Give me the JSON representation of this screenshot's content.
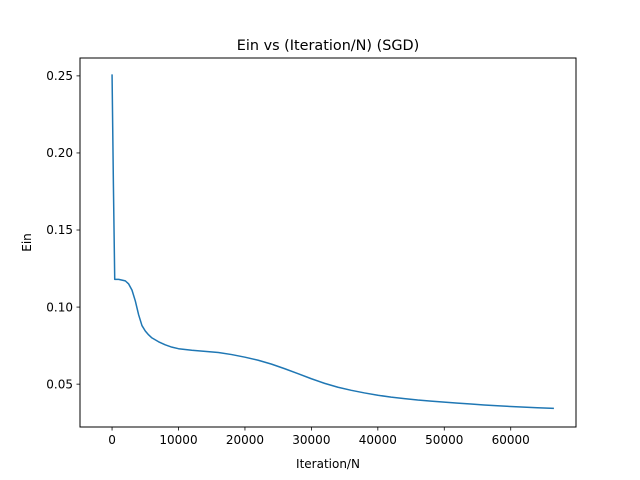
{
  "chart_data": {
    "type": "line",
    "title": "Ein vs (Iteration/N) (SGD)",
    "xlabel": "Iteration/N",
    "ylabel": "Ein",
    "xlim": [
      -4825,
      69825
    ],
    "ylim": [
      0.0222,
      0.2616
    ],
    "xticks": [
      {
        "value": 0,
        "label": "0"
      },
      {
        "value": 10000,
        "label": "10000"
      },
      {
        "value": 20000,
        "label": "20000"
      },
      {
        "value": 30000,
        "label": "30000"
      },
      {
        "value": 40000,
        "label": "40000"
      },
      {
        "value": 50000,
        "label": "50000"
      },
      {
        "value": 60000,
        "label": "60000"
      }
    ],
    "yticks": [
      {
        "value": 0.05,
        "label": "0.05"
      },
      {
        "value": 0.1,
        "label": "0.10"
      },
      {
        "value": 0.15,
        "label": "0.15"
      },
      {
        "value": 0.2,
        "label": "0.20"
      },
      {
        "value": 0.25,
        "label": "0.25"
      }
    ],
    "grid": false,
    "legend": "none",
    "series": [
      {
        "color": "#1f77b4",
        "x": [
          0,
          200,
          400,
          1000,
          2000,
          2500,
          3000,
          3500,
          4000,
          4500,
          5000,
          5500,
          6000,
          7000,
          8000,
          9000,
          10000,
          12000,
          14000,
          16000,
          18000,
          20000,
          22000,
          24000,
          26000,
          28000,
          30000,
          32000,
          34000,
          36000,
          38000,
          40000,
          42000,
          44000,
          46000,
          48000,
          50000,
          52000,
          54000,
          56000,
          58000,
          60000,
          62000,
          64000,
          66000,
          66500
        ],
        "y": [
          0.251,
          0.18,
          0.118,
          0.118,
          0.117,
          0.115,
          0.111,
          0.104,
          0.095,
          0.088,
          0.0845,
          0.082,
          0.08,
          0.0775,
          0.0755,
          0.074,
          0.073,
          0.072,
          0.0713,
          0.0705,
          0.0692,
          0.0675,
          0.0655,
          0.063,
          0.06,
          0.0568,
          0.0535,
          0.0505,
          0.048,
          0.046,
          0.0443,
          0.0428,
          0.0416,
          0.0406,
          0.0397,
          0.039,
          0.0383,
          0.0377,
          0.0371,
          0.0365,
          0.036,
          0.0355,
          0.0351,
          0.0347,
          0.0344,
          0.0343
        ]
      }
    ]
  }
}
